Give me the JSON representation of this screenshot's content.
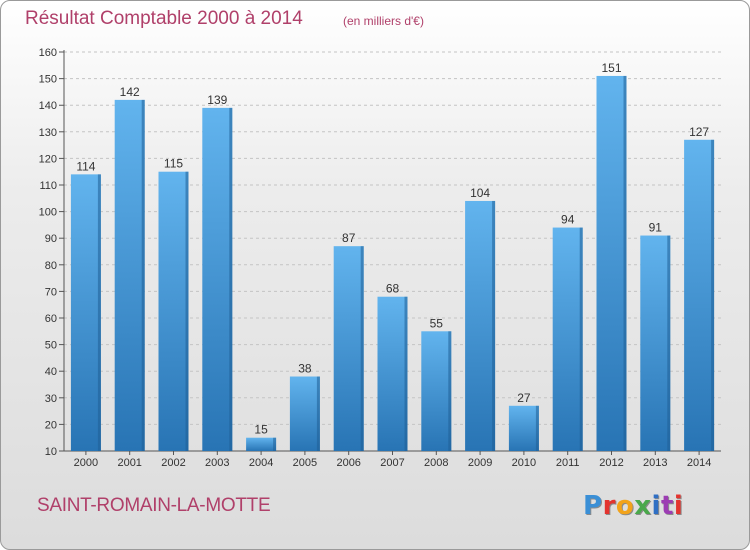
{
  "header": {
    "title": "Résultat Comptable 2000 à 2014",
    "unit": "(en milliers d'€)"
  },
  "footer": {
    "commune": "SAINT-ROMAIN-LA-MOTTE",
    "logo_text": "Proxiti",
    "logo_colors": [
      "#3a8fd6",
      "#e3342f",
      "#f2a31b",
      "#4aa84b",
      "#2f6fc4",
      "#9c3db3",
      "#e3342f"
    ]
  },
  "colors": {
    "title": "#b0406a",
    "bar_light": "#5eb0ec",
    "bar_dark": "#2a78b8",
    "bar_side": "#1f5f95"
  },
  "chart_data": {
    "type": "bar",
    "categories": [
      "2000",
      "2001",
      "2002",
      "2003",
      "2004",
      "2005",
      "2006",
      "2007",
      "2008",
      "2009",
      "2010",
      "2011",
      "2012",
      "2013",
      "2014"
    ],
    "values": [
      114,
      142,
      115,
      139,
      15,
      38,
      87,
      68,
      55,
      104,
      27,
      94,
      151,
      91,
      127
    ],
    "ylim": [
      10,
      160
    ],
    "yticks": [
      10,
      20,
      30,
      40,
      50,
      60,
      70,
      80,
      90,
      100,
      110,
      120,
      130,
      140,
      150,
      160
    ],
    "grid": true,
    "legend": "none"
  }
}
